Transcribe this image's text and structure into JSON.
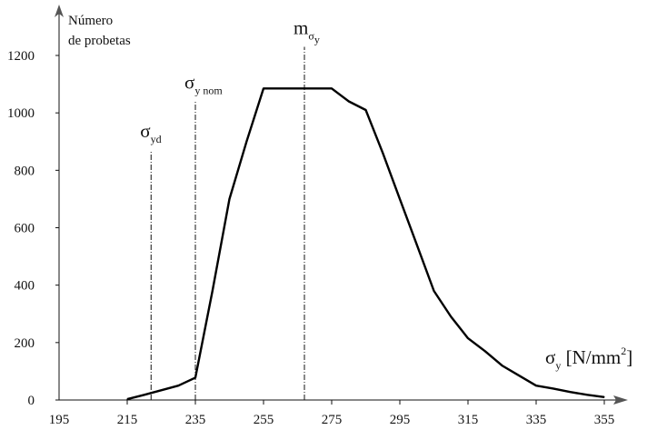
{
  "chart_data": {
    "type": "line",
    "title": "",
    "ylabel_line1": "Número",
    "ylabel_line2": "de probetas",
    "xlabel": {
      "symbol": "σ",
      "sub": "y",
      "unit_prefix": " [N/mm",
      "unit_sup": "2",
      "unit_suffix": "]"
    },
    "xlim": [
      195,
      362
    ],
    "ylim": [
      0,
      1310
    ],
    "x_ticks": [
      195,
      215,
      235,
      255,
      275,
      295,
      315,
      335,
      355
    ],
    "y_ticks": [
      0,
      200,
      400,
      600,
      800,
      1000,
      1200
    ],
    "grid": false,
    "series": [
      {
        "x": [
          215,
          220,
          230,
          235,
          240,
          245,
          250,
          255,
          260,
          265,
          270,
          275,
          280,
          285,
          290,
          295,
          300,
          305,
          310,
          315,
          320,
          325,
          330,
          335,
          340,
          345,
          350,
          355
        ],
        "y": [
          3,
          18,
          50,
          78,
          380,
          700,
          900,
          1085,
          1085,
          1085,
          1085,
          1085,
          1040,
          1010,
          860,
          700,
          540,
          380,
          290,
          215,
          170,
          120,
          85,
          50,
          40,
          28,
          18,
          10
        ]
      }
    ],
    "reference_lines": [
      {
        "x": 222,
        "y_top": 870,
        "symbol": "σ",
        "sub": "yd"
      },
      {
        "x": 235,
        "y_top": 1040,
        "symbol": "σ",
        "sub": "y nom"
      },
      {
        "x": 267,
        "y_top": 1230,
        "symbol": "m",
        "sub": "σ",
        "subsub": "y"
      }
    ]
  }
}
